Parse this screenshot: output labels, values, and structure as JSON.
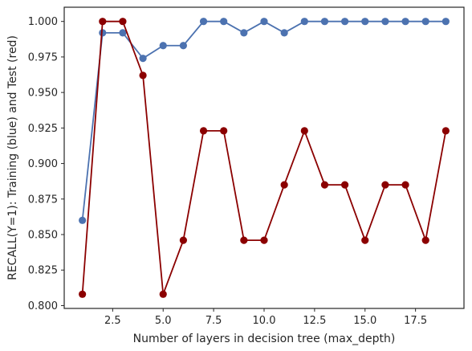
{
  "chart_data": {
    "type": "line",
    "xlabel": "Number of layers in decision tree (max_depth)",
    "ylabel": "RECALL(Y=1): Training (blue) and Test (red)",
    "xlim": [
      0.1,
      19.9
    ],
    "ylim": [
      0.798,
      1.01
    ],
    "grid": false,
    "x_ticks": [
      2.5,
      5.0,
      7.5,
      10.0,
      12.5,
      15.0,
      17.5
    ],
    "x_tick_labels": [
      "2.5",
      "5.0",
      "7.5",
      "10.0",
      "12.5",
      "15.0",
      "17.5"
    ],
    "y_ticks": [
      0.8,
      0.825,
      0.85,
      0.875,
      0.9,
      0.925,
      0.95,
      0.975,
      1.0
    ],
    "y_tick_labels": [
      "0.800",
      "0.825",
      "0.850",
      "0.875",
      "0.900",
      "0.925",
      "0.950",
      "0.975",
      "1.000"
    ],
    "x": [
      1,
      2,
      3,
      4,
      5,
      6,
      7,
      8,
      9,
      10,
      11,
      12,
      13,
      14,
      15,
      16,
      17,
      18,
      19
    ],
    "series": [
      {
        "color": "#4c72b0",
        "values": [
          0.86,
          0.992,
          0.992,
          0.974,
          0.983,
          0.983,
          1.0,
          1.0,
          0.992,
          1.0,
          0.992,
          1.0,
          1.0,
          1.0,
          1.0,
          1.0,
          1.0,
          1.0,
          1.0
        ]
      },
      {
        "color": "#8b0000",
        "values": [
          0.808,
          1.0,
          1.0,
          0.962,
          0.808,
          0.846,
          0.923,
          0.923,
          0.846,
          0.846,
          0.885,
          0.923,
          0.885,
          0.885,
          0.846,
          0.885,
          0.885,
          0.846,
          0.923
        ]
      }
    ]
  }
}
